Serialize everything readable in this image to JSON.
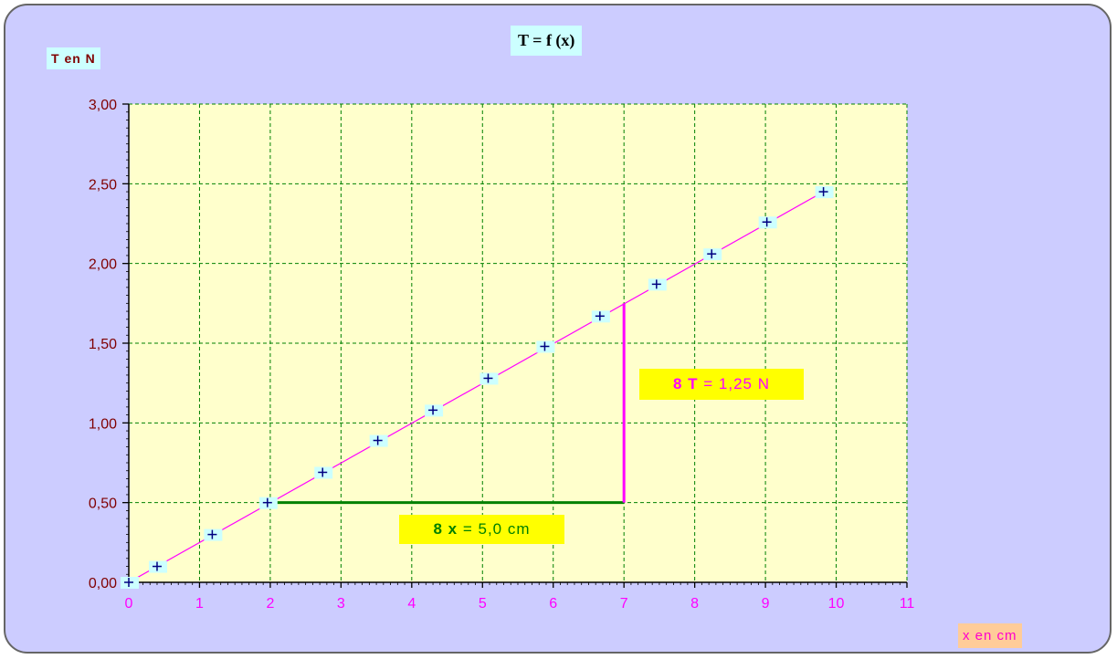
{
  "chart_data": {
    "type": "scatter",
    "title": "T = f (x)",
    "xlabel": "x en cm",
    "ylabel": "T en N",
    "xlim": [
      0,
      11
    ],
    "ylim": [
      0,
      3
    ],
    "x_ticks": [
      "0",
      "1",
      "2",
      "3",
      "4",
      "5",
      "6",
      "7",
      "8",
      "9",
      "10",
      "11"
    ],
    "y_ticks": [
      "0,00",
      "0,50",
      "1,00",
      "1,50",
      "2,00",
      "2,50",
      "3,00"
    ],
    "grid": true,
    "series": [
      {
        "x": [
          0,
          0.4,
          1.18,
          1.96,
          2.74,
          3.52,
          4.3,
          5.08,
          5.88,
          6.66,
          7.46,
          8.24,
          9.02,
          9.82
        ],
        "y": [
          0,
          0.1,
          0.3,
          0.5,
          0.69,
          0.89,
          1.08,
          1.28,
          1.48,
          1.67,
          1.87,
          2.06,
          2.26,
          2.45
        ],
        "marker": "+",
        "color": "#000080"
      }
    ],
    "fit_line": {
      "x": [
        0,
        9.82
      ],
      "y": [
        0,
        2.45
      ],
      "color": "#ff00ff"
    },
    "annotations": {
      "delta_x": {
        "symbol": "8 x",
        "text": " = 5,0 cm",
        "from": [
          2,
          0.5
        ],
        "to": [
          7,
          0.5
        ],
        "color": "#008000"
      },
      "delta_t": {
        "symbol": "8 T",
        "text": " = 1,25 N",
        "from": [
          7,
          0.5
        ],
        "to": [
          7,
          1.75
        ],
        "color": "#ff00ff"
      }
    },
    "colors": {
      "panel_bg": "#ccccff",
      "plot_bg": "#ffffcc",
      "grid": "#008000",
      "y_tick_text": "#800000",
      "x_tick_text": "#ff00ff",
      "marker_bg": "#ccffff"
    }
  }
}
